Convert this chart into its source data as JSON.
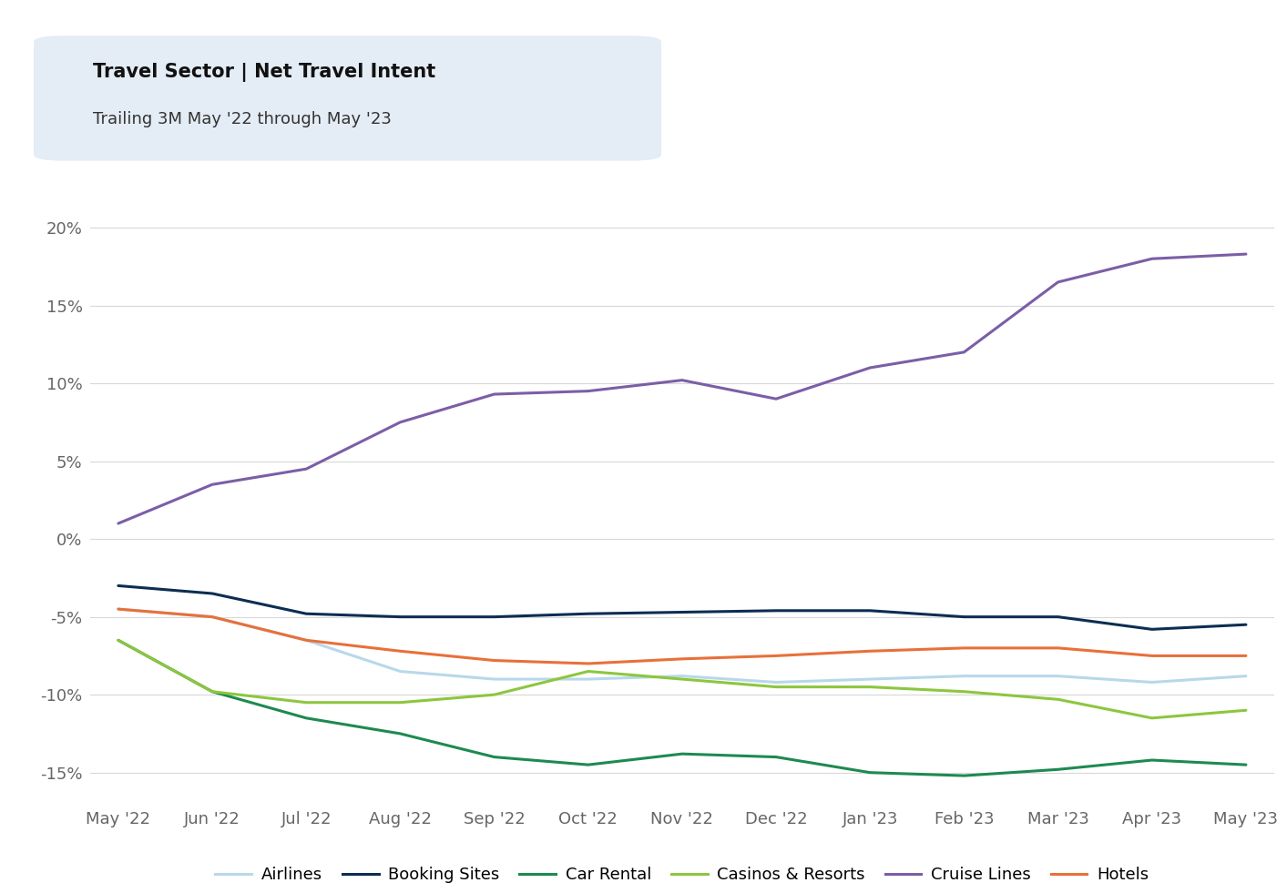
{
  "title_line1": "Travel Sector | Net Travel Intent",
  "title_line2": "Trailing 3M May '22 through May '23",
  "x_labels": [
    "May '22",
    "Jun '22",
    "Jul '22",
    "Aug '22",
    "Sep '22",
    "Oct '22",
    "Nov '22",
    "Dec '22",
    "Jan '23",
    "Feb '23",
    "Mar '23",
    "Apr '23",
    "May '23"
  ],
  "series": {
    "Airlines": {
      "color": "#b8d8ea",
      "values": [
        -4.5,
        -5.0,
        -6.5,
        -8.5,
        -9.0,
        -9.0,
        -8.8,
        -9.2,
        -9.0,
        -8.8,
        -8.8,
        -9.2,
        -8.8
      ]
    },
    "Booking Sites": {
      "color": "#0d2d52",
      "values": [
        -3.0,
        -3.5,
        -4.8,
        -5.0,
        -5.0,
        -4.8,
        -4.7,
        -4.6,
        -4.6,
        -5.0,
        -5.0,
        -5.8,
        -5.5
      ]
    },
    "Car Rental": {
      "color": "#1d8a50",
      "values": [
        -6.5,
        -9.8,
        -11.5,
        -12.5,
        -14.0,
        -14.5,
        -13.8,
        -14.0,
        -15.0,
        -15.2,
        -14.8,
        -14.2,
        -14.5
      ]
    },
    "Casinos & Resorts": {
      "color": "#8dc63f",
      "values": [
        -6.5,
        -9.8,
        -10.5,
        -10.5,
        -10.0,
        -8.5,
        -9.0,
        -9.5,
        -9.5,
        -9.8,
        -10.3,
        -11.5,
        -11.0
      ]
    },
    "Cruise Lines": {
      "color": "#7b5ea7",
      "values": [
        1.0,
        3.5,
        4.5,
        7.5,
        9.3,
        9.5,
        10.2,
        9.0,
        11.0,
        12.0,
        16.5,
        18.0,
        18.3
      ]
    },
    "Hotels": {
      "color": "#e8703a",
      "values": [
        -4.5,
        -5.0,
        -6.5,
        -7.2,
        -7.8,
        -8.0,
        -7.7,
        -7.5,
        -7.2,
        -7.0,
        -7.0,
        -7.5,
        -7.5
      ]
    }
  },
  "ylim": [
    -17,
    22
  ],
  "yticks": [
    -15,
    -10,
    -5,
    0,
    5,
    10,
    15,
    20
  ],
  "ytick_labels": [
    "-15%",
    "-10%",
    "-5%",
    "0%",
    "5%",
    "10%",
    "15%",
    "20%"
  ],
  "background_color": "#ffffff",
  "grid_color": "#d8d8d8",
  "title_box_color": "#e4ecf5",
  "linewidth": 2.2
}
